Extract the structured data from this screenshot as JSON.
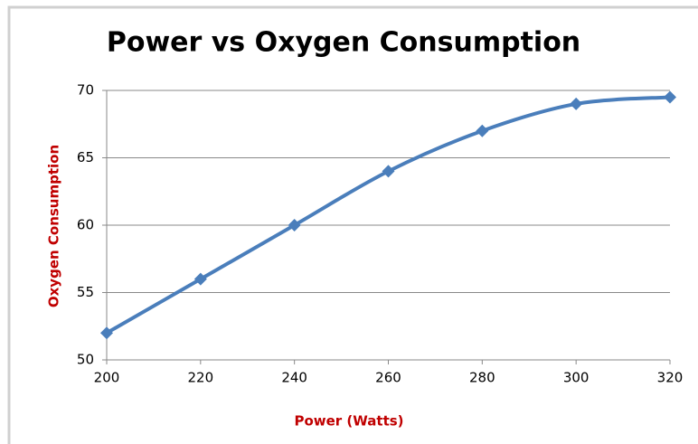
{
  "chart_data": {
    "type": "line",
    "title": "Power vs Oxygen Consumption",
    "x_label": "Power (Watts)",
    "y_label": "Oxygen Consumption",
    "x": [
      200,
      220,
      240,
      260,
      280,
      300,
      320
    ],
    "series": [
      {
        "name": "Oxygen Consumption",
        "color": "#4a7ebb",
        "values": [
          52,
          56,
          60,
          64,
          67,
          69,
          69.5
        ]
      }
    ],
    "xlim": [
      200,
      320
    ],
    "xticks": [
      200,
      220,
      240,
      260,
      280,
      300,
      320
    ],
    "ylim": [
      50,
      70
    ],
    "yticks": [
      50,
      55,
      60,
      65,
      70
    ],
    "grid": true,
    "smooth": true,
    "marker": "diamond"
  }
}
